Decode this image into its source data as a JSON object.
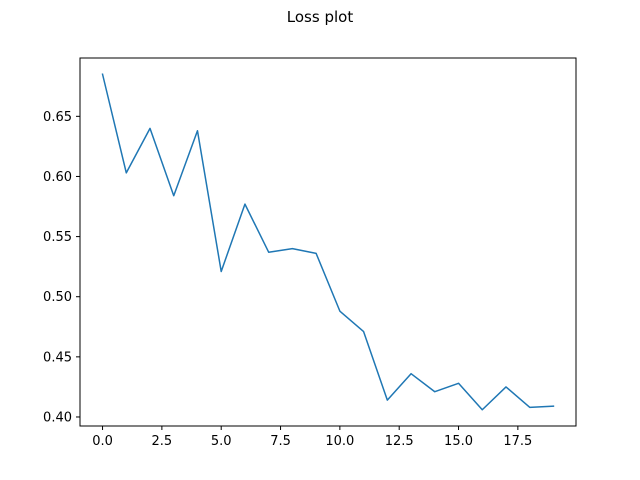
{
  "chart_data": {
    "type": "line",
    "title": "Loss plot",
    "xlabel": "",
    "ylabel": "",
    "xlim": [
      -0.95,
      19.95
    ],
    "ylim": [
      0.3925,
      0.6985
    ],
    "x_ticks": [
      0,
      2.5,
      5,
      7.5,
      10,
      12.5,
      15,
      17.5
    ],
    "x_tick_labels": [
      "0.0",
      "2.5",
      "5.0",
      "7.5",
      "10.0",
      "12.5",
      "15.0",
      "17.5"
    ],
    "y_ticks": [
      0.4,
      0.45,
      0.5,
      0.55,
      0.6,
      0.65
    ],
    "y_tick_labels": [
      "0.40",
      "0.45",
      "0.50",
      "0.55",
      "0.60",
      "0.65"
    ],
    "grid": false,
    "legend": "none",
    "series": [
      {
        "color": "#1f77b4",
        "x": [
          0,
          1,
          2,
          3,
          4,
          5,
          6,
          7,
          8,
          9,
          10,
          11,
          12,
          13,
          14,
          15,
          16,
          17,
          18,
          19
        ],
        "values": [
          0.685,
          0.603,
          0.64,
          0.584,
          0.638,
          0.521,
          0.577,
          0.537,
          0.54,
          0.536,
          0.488,
          0.471,
          0.414,
          0.436,
          0.421,
          0.428,
          0.406,
          0.425,
          0.408,
          0.409
        ]
      }
    ]
  }
}
